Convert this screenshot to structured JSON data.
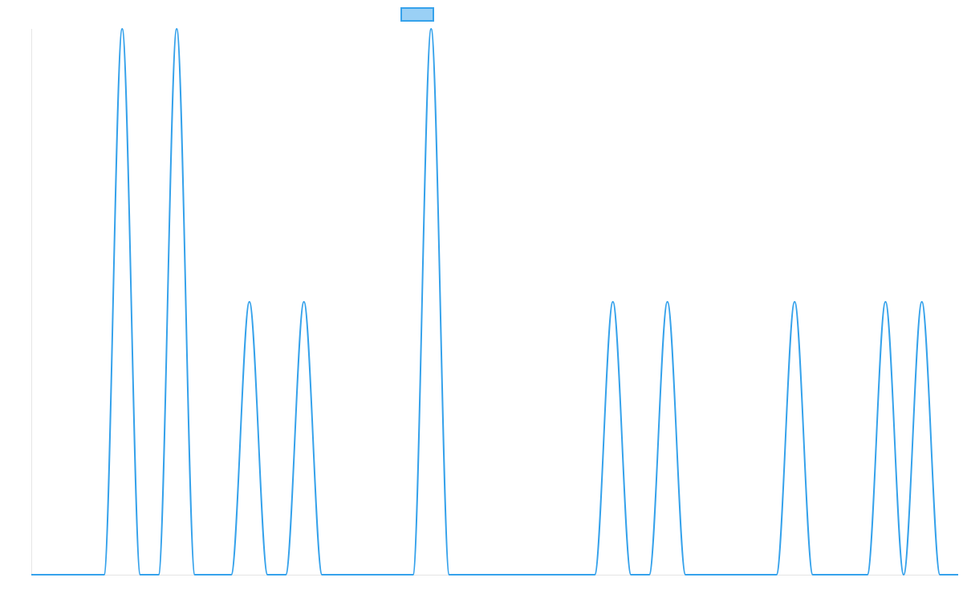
{
  "colors": {
    "series_line": "#36a2eb",
    "legend_fill": "#9ad0f5",
    "axis": "#e5e5e5"
  },
  "chart_data": {
    "type": "line",
    "title": "",
    "xlabel": "",
    "ylabel": "",
    "grid": false,
    "legend_placement": "top-center",
    "xlim": [
      0,
      51
    ],
    "ylim": [
      0,
      3
    ],
    "x_ticks_visible": false,
    "y_ticks_visible": false,
    "series": [
      {
        "legend_label": "",
        "x": [
          0,
          4,
          5,
          6,
          7,
          8,
          9,
          10,
          11,
          12,
          13,
          14,
          15,
          16,
          17,
          18,
          19,
          20,
          21,
          22,
          23,
          24,
          25,
          26,
          27,
          28,
          29,
          30,
          31,
          32,
          33,
          34,
          35,
          36,
          37,
          38,
          39,
          40,
          41,
          42,
          43,
          44,
          45,
          46,
          47,
          48,
          49,
          50,
          51
        ],
        "y": [
          0,
          0,
          3,
          0,
          0,
          3,
          0,
          0,
          0,
          1.5,
          0,
          0,
          1.5,
          0,
          0,
          0,
          0,
          0,
          0,
          3,
          0,
          0,
          0,
          0,
          0,
          0,
          0,
          0,
          0,
          1.5,
          0,
          0,
          1.5,
          0,
          0,
          0,
          0,
          0,
          0,
          1.5,
          0,
          0,
          0,
          0,
          1.5,
          0,
          1.5,
          0,
          0
        ]
      }
    ]
  }
}
